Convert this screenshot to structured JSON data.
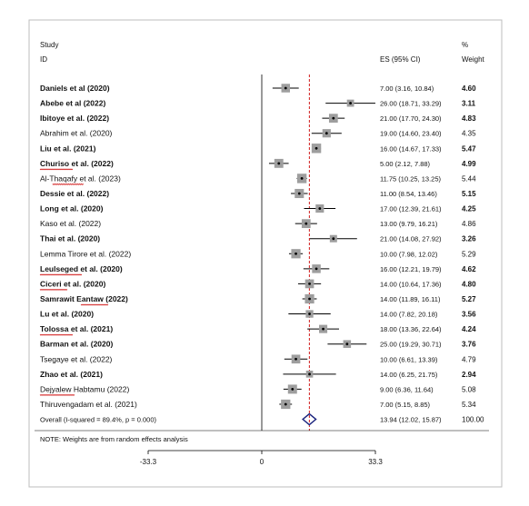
{
  "chart_data": {
    "type": "forest",
    "header": {
      "study_line1": "Study",
      "study_line2": "ID",
      "es": "ES (95% CI)",
      "weight_line1": "%",
      "weight_line2": "Weight"
    },
    "xlim": [
      -33.3,
      33.3
    ],
    "null_line": 0,
    "overall_line": 13.94,
    "ticks": [
      {
        "value": -33.3,
        "label": "-33.3"
      },
      {
        "value": 0,
        "label": "0"
      },
      {
        "value": 33.3,
        "label": "33.3"
      }
    ],
    "studies": [
      {
        "name": "Daniels et al (2020)",
        "es": 7.0,
        "lo": 3.16,
        "hi": 10.84,
        "ci_text": "7.00 (3.16, 10.84)",
        "weight": "4.60",
        "bold": true
      },
      {
        "name": "Abebe et al (2022)",
        "es": 26.0,
        "lo": 18.71,
        "hi": 33.29,
        "ci_text": "26.00 (18.71, 33.29)",
        "weight": "3.11",
        "bold": true
      },
      {
        "name": "Ibitoye et al. (2022)",
        "es": 21.0,
        "lo": 17.7,
        "hi": 24.3,
        "ci_text": "21.00 (17.70, 24.30)",
        "weight": "4.83",
        "bold": true
      },
      {
        "name": "Abrahim et al. (2020)",
        "es": 19.0,
        "lo": 14.6,
        "hi": 23.4,
        "ci_text": "19.00 (14.60, 23.40)",
        "weight": "4.35",
        "bold": false
      },
      {
        "name": "Liu et al.  (2021)",
        "es": 16.0,
        "lo": 14.67,
        "hi": 17.33,
        "ci_text": "16.00 (14.67, 17.33)",
        "weight": "5.47",
        "bold": true
      },
      {
        "name": "Churiso et al. (2022)",
        "es": 5.0,
        "lo": 2.12,
        "hi": 7.88,
        "ci_text": "5.00 (2.12, 7.88)",
        "weight": "4.99",
        "bold": true
      },
      {
        "name": "Al-Thaqafy et al. (2023)",
        "es": 11.75,
        "lo": 10.25,
        "hi": 13.25,
        "ci_text": "11.75 (10.25, 13.25)",
        "weight": "5.44",
        "bold": false
      },
      {
        "name": "Dessie et al. (2022)",
        "es": 11.0,
        "lo": 8.54,
        "hi": 13.46,
        "ci_text": "11.00 (8.54, 13.46)",
        "weight": "5.15",
        "bold": true
      },
      {
        "name": "Long et al.  (2020)",
        "es": 17.0,
        "lo": 12.39,
        "hi": 21.61,
        "ci_text": "17.00 (12.39, 21.61)",
        "weight": "4.25",
        "bold": true
      },
      {
        "name": "Kaso et al. (2022)",
        "es": 13.0,
        "lo": 9.79,
        "hi": 16.21,
        "ci_text": "13.00 (9.79, 16.21)",
        "weight": "4.86",
        "bold": false
      },
      {
        "name": "Thai et al. (2020)",
        "es": 21.0,
        "lo": 14.08,
        "hi": 27.92,
        "ci_text": "21.00 (14.08, 27.92)",
        "weight": "3.26",
        "bold": true
      },
      {
        "name": "Lemma  Tirore et al. (2022)",
        "es": 10.0,
        "lo": 7.98,
        "hi": 12.02,
        "ci_text": "10.00 (7.98, 12.02)",
        "weight": "5.29",
        "bold": false
      },
      {
        "name": "Leulseged et al. (2020)",
        "es": 16.0,
        "lo": 12.21,
        "hi": 19.79,
        "ci_text": "16.00 (12.21, 19.79)",
        "weight": "4.62",
        "bold": true
      },
      {
        "name": "Ciceri et al. (2020)",
        "es": 14.0,
        "lo": 10.64,
        "hi": 17.36,
        "ci_text": "14.00 (10.64, 17.36)",
        "weight": "4.80",
        "bold": true
      },
      {
        "name": "Samrawit Eantaw (2022)",
        "es": 14.0,
        "lo": 11.89,
        "hi": 16.11,
        "ci_text": "14.00 (11.89, 16.11)",
        "weight": "5.27",
        "bold": true
      },
      {
        "name": "Lu et al.  (2020)",
        "es": 14.0,
        "lo": 7.82,
        "hi": 20.18,
        "ci_text": "14.00 (7.82, 20.18)",
        "weight": "3.56",
        "bold": true
      },
      {
        "name": "Tolossa et al. (2021)",
        "es": 18.0,
        "lo": 13.36,
        "hi": 22.64,
        "ci_text": "18.00 (13.36, 22.64)",
        "weight": "4.24",
        "bold": true
      },
      {
        "name": "Barman et al. (2020)",
        "es": 25.0,
        "lo": 19.29,
        "hi": 30.71,
        "ci_text": "25.00 (19.29, 30.71)",
        "weight": "3.76",
        "bold": true
      },
      {
        "name": "Tsegaye et al. (2022)",
        "es": 10.0,
        "lo": 6.61,
        "hi": 13.39,
        "ci_text": "10.00 (6.61, 13.39)",
        "weight": "4.79",
        "bold": false
      },
      {
        "name": "Zhao et al.  (2021)",
        "es": 14.0,
        "lo": 6.25,
        "hi": 21.75,
        "ci_text": "14.00 (6.25, 21.75)",
        "weight": "2.94",
        "bold": true
      },
      {
        "name": "Dejyalew Habtamu  (2022)",
        "es": 9.0,
        "lo": 6.36,
        "hi": 11.64,
        "ci_text": "9.00 (6.36, 11.64)",
        "weight": "5.08",
        "bold": false
      },
      {
        "name": "Thiruvengadam et al. (2021)",
        "es": 7.0,
        "lo": 5.15,
        "hi": 8.85,
        "ci_text": "7.00 (5.15, 8.85)",
        "weight": "5.34",
        "bold": false
      }
    ],
    "overall": {
      "label": "Overall  (I-squared = 89.4%, p = 0.000)",
      "es": 13.94,
      "lo": 12.02,
      "hi": 15.87,
      "ci_text": "13.94 (12.02, 15.87)",
      "weight": "100.00"
    },
    "note": "NOTE: Weights are from random effects analysis",
    "colors": {
      "null_line": "#000000",
      "overall_line": "#cc0000",
      "diamond": "#1a237e",
      "box": "#9e9e9e"
    }
  },
  "misspelled_names": [
    "Churiso",
    "Thaqafy",
    "Leulseged",
    "Ciceri",
    "Eantaw",
    "Tolossa",
    "Dejyalew"
  ]
}
